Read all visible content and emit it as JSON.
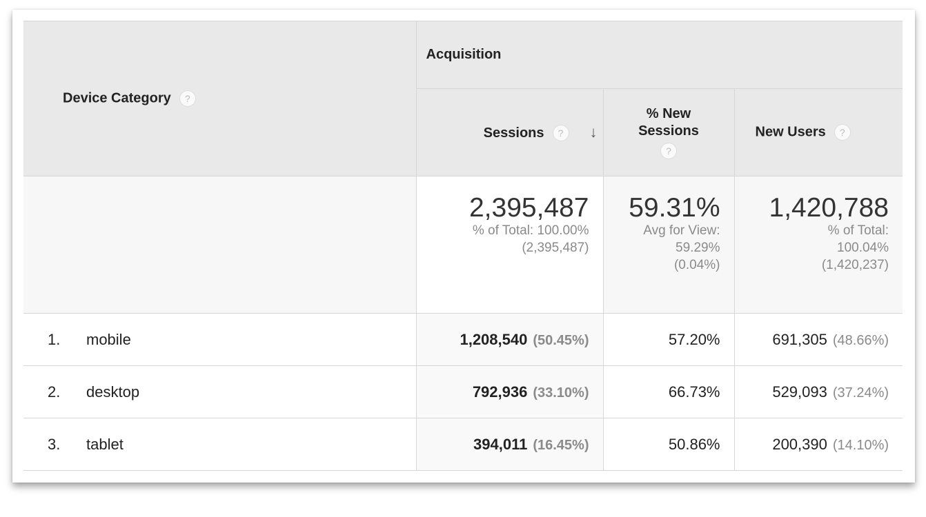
{
  "header": {
    "dimension": "Device Category",
    "group": "Acquisition",
    "columns": [
      {
        "label": "Sessions",
        "sorted": "descending"
      },
      {
        "label": "% New Sessions"
      },
      {
        "label": "New Users"
      }
    ],
    "help_icon": "?",
    "sort_icon": "↓"
  },
  "totals": {
    "sessions": {
      "value": "2,395,487",
      "line1": "% of Total: 100.00%",
      "line2": "(2,395,487)"
    },
    "new_sessions": {
      "value": "59.31%",
      "line1": "Avg for View:",
      "line2": "59.29%",
      "line3": "(0.04%)"
    },
    "new_users": {
      "value": "1,420,788",
      "line1": "% of Total:",
      "line2": "100.04%",
      "line3": "(1,420,237)"
    }
  },
  "rows": [
    {
      "rank": "1.",
      "device": "mobile",
      "sessions": "1,208,540",
      "sessions_pct": "(50.45%)",
      "new_sessions": "57.20%",
      "new_users": "691,305",
      "new_users_pct": "(48.66%)"
    },
    {
      "rank": "2.",
      "device": "desktop",
      "sessions": "792,936",
      "sessions_pct": "(33.10%)",
      "new_sessions": "66.73%",
      "new_users": "529,093",
      "new_users_pct": "(37.24%)"
    },
    {
      "rank": "3.",
      "device": "tablet",
      "sessions": "394,011",
      "sessions_pct": "(16.45%)",
      "new_sessions": "50.86%",
      "new_users": "200,390",
      "new_users_pct": "(14.10%)"
    }
  ]
}
